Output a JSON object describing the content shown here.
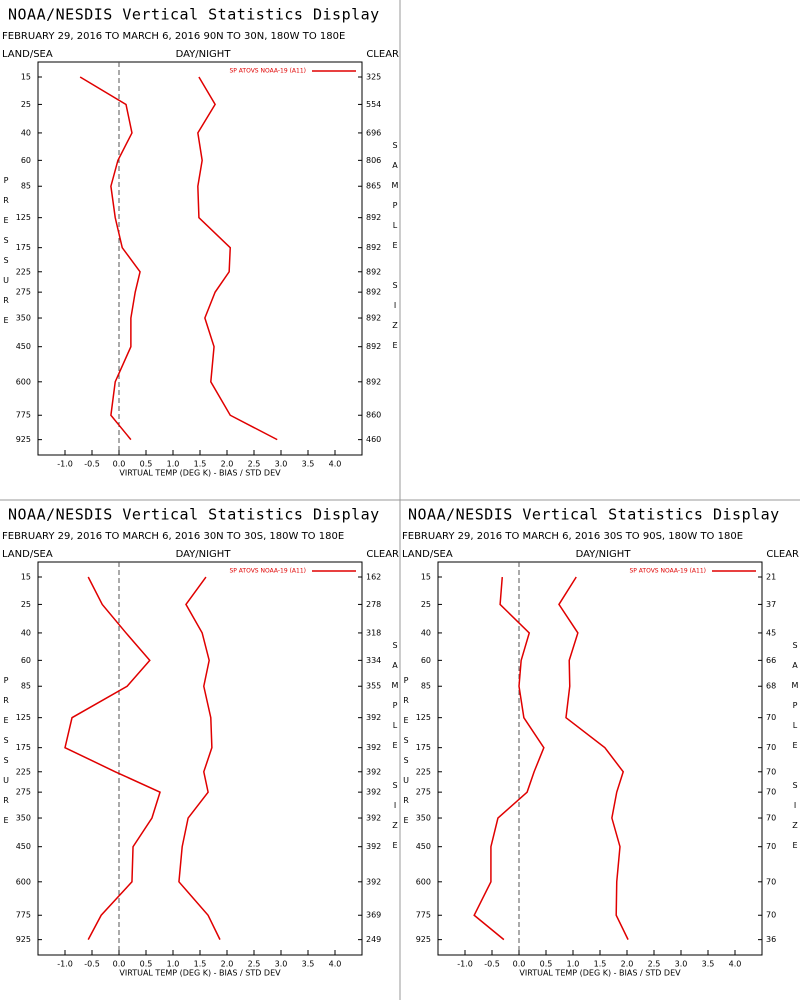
{
  "chart_data": [
    {
      "type": "line",
      "title": "NOAA/NESDIS Vertical Statistics Display",
      "subtitle": "FEBRUARY 29, 2016 TO MARCH 6, 2016 90N TO 30N, 180W TO 180E",
      "header_left": "LAND/SEA",
      "header_center": "DAY/NIGHT",
      "header_right": "CLEAR",
      "ylabel": "PRESSURE",
      "y2label": "SAMPLE SIZE",
      "xlabel": "VIRTUAL TEMP (DEG K) - BIAS / STD DEV",
      "levels": [
        15,
        25,
        40,
        60,
        85,
        125,
        175,
        225,
        275,
        350,
        450,
        600,
        775,
        925
      ],
      "sample_size": [
        325,
        554,
        696,
        806,
        865,
        892,
        892,
        892,
        892,
        892,
        892,
        892,
        860,
        460
      ],
      "series": [
        {
          "name": "SP ATOVS NOAA-19 (A11)",
          "color": "#e00000",
          "values": [
            -0.72,
            0.13,
            0.24,
            -0.02,
            -0.15,
            -0.07,
            0.06,
            0.39,
            0.3,
            0.22,
            0.22,
            -0.07,
            -0.15,
            0.22
          ]
        },
        {
          "color": "#e00000",
          "values": [
            1.48,
            1.78,
            1.46,
            1.54,
            1.46,
            1.48,
            2.06,
            2.04,
            1.78,
            1.59,
            1.76,
            1.7,
            2.06,
            2.93
          ]
        }
      ],
      "xlim": [
        -1.5,
        4.5
      ],
      "ylim": [
        1030,
        11
      ],
      "xticks": [
        {
          "value": -1,
          "label": "-1.0"
        },
        {
          "value": -0.5,
          "label": "-0.5"
        },
        {
          "value": 0,
          "label": "0.0"
        },
        {
          "value": 0.5,
          "label": "0.5"
        },
        {
          "value": 1,
          "label": "1.0"
        },
        {
          "value": 1.5,
          "label": "1.5"
        },
        {
          "value": 2,
          "label": "2.0"
        },
        {
          "value": 2.5,
          "label": "2.5"
        },
        {
          "value": 3,
          "label": "3.0"
        },
        {
          "value": 3.5,
          "label": "3.5"
        },
        {
          "value": 4,
          "label": "4.0"
        }
      ],
      "legend": "upper right"
    },
    {
      "type": "line",
      "title": "NOAA/NESDIS Vertical Statistics Display",
      "subtitle": "FEBRUARY 29, 2016 TO MARCH 6, 2016 30N TO 30S, 180W TO 180E",
      "header_left": "LAND/SEA",
      "header_center": "DAY/NIGHT",
      "header_right": "CLEAR",
      "ylabel": "PRESSURE",
      "y2label": "SAMPLE SIZE",
      "xlabel": "VIRTUAL TEMP (DEG K) - BIAS / STD DEV",
      "levels": [
        15,
        25,
        40,
        60,
        85,
        125,
        175,
        225,
        275,
        350,
        450,
        600,
        775,
        925
      ],
      "sample_size": [
        162,
        278,
        318,
        334,
        355,
        392,
        392,
        392,
        392,
        392,
        392,
        392,
        369,
        249
      ],
      "series": [
        {
          "name": "SP ATOVS NOAA-19 (A11)",
          "color": "#e00000",
          "values": [
            -0.57,
            -0.31,
            0.13,
            0.57,
            0.15,
            -0.87,
            -1.0,
            -0.07,
            0.76,
            0.61,
            0.26,
            0.24,
            -0.33,
            -0.57
          ]
        },
        {
          "color": "#e00000",
          "values": [
            1.61,
            1.24,
            1.54,
            1.67,
            1.57,
            1.7,
            1.72,
            1.57,
            1.65,
            1.28,
            1.17,
            1.11,
            1.65,
            1.87
          ]
        }
      ],
      "xlim": [
        -1.5,
        4.5
      ],
      "ylim": [
        1030,
        11
      ],
      "xticks": [
        {
          "value": -1,
          "label": "-1.0"
        },
        {
          "value": -0.5,
          "label": "-0.5"
        },
        {
          "value": 0,
          "label": "0.0"
        },
        {
          "value": 0.5,
          "label": "0.5"
        },
        {
          "value": 1,
          "label": "1.0"
        },
        {
          "value": 1.5,
          "label": "1.5"
        },
        {
          "value": 2,
          "label": "2.0"
        },
        {
          "value": 2.5,
          "label": "2.5"
        },
        {
          "value": 3,
          "label": "3.0"
        },
        {
          "value": 3.5,
          "label": "3.5"
        },
        {
          "value": 4,
          "label": "4.0"
        }
      ],
      "legend": "upper right"
    },
    {
      "type": "line",
      "title": "NOAA/NESDIS Vertical Statistics Display",
      "subtitle": "FEBRUARY 29, 2016 TO MARCH 6, 2016 30S TO 90S, 180W TO 180E",
      "header_left": "LAND/SEA",
      "header_center": "DAY/NIGHT",
      "header_right": "CLEAR",
      "ylabel": "PRESSURE",
      "y2label": "SAMPLE SIZE",
      "xlabel": "VIRTUAL TEMP (DEG K) - BIAS / STD DEV",
      "levels": [
        15,
        25,
        40,
        60,
        85,
        125,
        175,
        225,
        275,
        350,
        450,
        600,
        775,
        925
      ],
      "sample_size": [
        21,
        37,
        45,
        66,
        68,
        70,
        70,
        70,
        70,
        70,
        70,
        70,
        70,
        36
      ],
      "series": [
        {
          "name": "SP ATOVS NOAA-19 (A11)",
          "color": "#e00000",
          "values": [
            -0.31,
            -0.35,
            0.19,
            0.04,
            0.0,
            0.09,
            0.46,
            0.28,
            0.15,
            -0.39,
            -0.52,
            -0.52,
            -0.83,
            -0.28
          ]
        },
        {
          "color": "#e00000",
          "values": [
            1.06,
            0.74,
            1.09,
            0.93,
            0.94,
            0.87,
            1.59,
            1.93,
            1.81,
            1.72,
            1.87,
            1.81,
            1.8,
            2.02
          ]
        }
      ],
      "xlim": [
        -1.5,
        4.5
      ],
      "ylim": [
        1030,
        11
      ],
      "xticks": [
        {
          "value": -1,
          "label": "-1.0"
        },
        {
          "value": -0.5,
          "label": "-0.5"
        },
        {
          "value": 0,
          "label": "0.0"
        },
        {
          "value": 0.5,
          "label": "0.5"
        },
        {
          "value": 1,
          "label": "1.0"
        },
        {
          "value": 1.5,
          "label": "1.5"
        },
        {
          "value": 2,
          "label": "2.0"
        },
        {
          "value": 2.5,
          "label": "2.5"
        },
        {
          "value": 3,
          "label": "3.0"
        },
        {
          "value": 3.5,
          "label": "3.5"
        },
        {
          "value": 4,
          "label": "4.0"
        }
      ],
      "legend": "upper right"
    }
  ]
}
